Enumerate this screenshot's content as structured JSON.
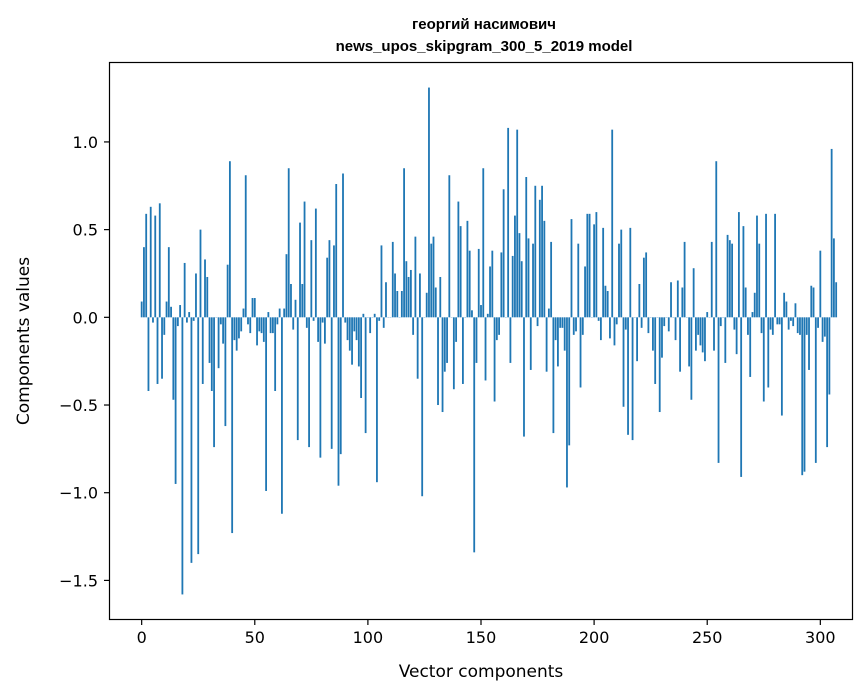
{
  "chart_data": {
    "type": "bar",
    "title_line1": "георгий насимович",
    "title_line2": "news_upos_skipgram_300_5_2019 model",
    "xlabel": "Vector components",
    "ylabel": "Components values",
    "xlim": [
      -14,
      314
    ],
    "ylim": [
      -1.72,
      1.45
    ],
    "xticks": [
      0,
      50,
      100,
      150,
      200,
      250,
      300
    ],
    "xtick_labels": [
      "0",
      "50",
      "100",
      "150",
      "200",
      "250",
      "300"
    ],
    "yticks": [
      -1.5,
      -1.0,
      -0.5,
      0.0,
      0.5,
      1.0
    ],
    "ytick_labels": [
      "−1.5",
      "−1.0",
      "−0.5",
      "0.0",
      "0.5",
      "1.0"
    ],
    "bar_color": "#1f77b4",
    "values": [
      0.09,
      0.4,
      0.59,
      -0.42,
      0.63,
      -0.03,
      0.58,
      -0.38,
      0.65,
      -0.35,
      -0.1,
      0.09,
      0.4,
      0.06,
      -0.47,
      -0.95,
      -0.05,
      0.07,
      -1.58,
      0.31,
      -0.03,
      0.03,
      -1.4,
      -0.02,
      0.25,
      -1.35,
      0.5,
      -0.38,
      0.33,
      0.23,
      -0.26,
      -0.42,
      -0.74,
      0.0,
      -0.29,
      -0.04,
      -0.15,
      -0.62,
      0.3,
      0.89,
      -1.23,
      -0.13,
      -0.19,
      -0.12,
      -0.08,
      0.05,
      0.81,
      -0.04,
      -0.09,
      0.11,
      0.11,
      -0.16,
      -0.08,
      -0.09,
      -0.14,
      -0.99,
      0.03,
      -0.09,
      -0.09,
      -0.42,
      -0.04,
      0.05,
      -1.12,
      0.05,
      0.36,
      0.85,
      0.19,
      -0.07,
      0.1,
      -0.7,
      0.54,
      0.19,
      0.66,
      -0.06,
      -0.74,
      0.44,
      -0.02,
      0.62,
      -0.14,
      -0.8,
      -0.03,
      -0.15,
      0.34,
      0.44,
      -0.75,
      0.41,
      0.76,
      -0.96,
      -0.78,
      0.82,
      -0.03,
      -0.13,
      -0.19,
      -0.27,
      -0.08,
      -0.13,
      -0.28,
      -0.46,
      0.02,
      -0.66,
      0.0,
      -0.09,
      0.0,
      0.02,
      -0.94,
      -0.02,
      0.41,
      -0.06,
      0.2,
      0.0,
      0.0,
      0.43,
      0.25,
      0.15,
      0.0,
      0.15,
      0.85,
      0.32,
      0.23,
      0.27,
      -0.1,
      0.46,
      -0.35,
      0.25,
      -1.02,
      0.0,
      0.14,
      1.31,
      0.42,
      0.46,
      0.17,
      -0.5,
      0.23,
      -0.54,
      -0.31,
      -0.26,
      0.81,
      0.0,
      -0.41,
      -0.14,
      0.66,
      0.52,
      -0.38,
      0.0,
      0.55,
      0.38,
      0.04,
      -1.34,
      -0.26,
      0.39,
      0.07,
      0.85,
      -0.36,
      0.02,
      0.29,
      0.38,
      -0.48,
      -0.13,
      -0.1,
      0.37,
      0.73,
      0.0,
      1.08,
      -0.26,
      0.35,
      0.58,
      1.07,
      0.48,
      0.32,
      -0.68,
      0.8,
      0.45,
      -0.3,
      0.42,
      0.75,
      -0.05,
      0.67,
      0.75,
      0.55,
      -0.31,
      0.05,
      0.43,
      -0.66,
      -0.13,
      -0.28,
      -0.06,
      -0.06,
      -0.19,
      -0.97,
      -0.73,
      0.56,
      -0.1,
      -0.08,
      0.42,
      -0.4,
      -0.1,
      0.29,
      0.59,
      0.59,
      0.0,
      0.53,
      0.6,
      -0.02,
      -0.13,
      0.51,
      0.18,
      0.15,
      -0.12,
      1.07,
      -0.16,
      -0.04,
      0.42,
      0.5,
      -0.51,
      -0.07,
      -0.67,
      0.51,
      -0.7,
      0.0,
      -0.25,
      0.19,
      -0.06,
      0.34,
      0.37,
      -0.09,
      0.0,
      -0.19,
      -0.38,
      0.0,
      -0.54,
      -0.23,
      -0.05,
      0.0,
      -0.08,
      0.2,
      0.0,
      -0.13,
      0.21,
      -0.31,
      0.17,
      0.43,
      0.0,
      -0.28,
      -0.47,
      0.28,
      -0.19,
      -0.1,
      -0.16,
      -0.2,
      -0.25,
      0.03,
      0.0,
      0.43,
      -0.19,
      0.89,
      -0.83,
      -0.05,
      0.0,
      -0.26,
      0.47,
      0.44,
      0.42,
      -0.07,
      -0.21,
      0.6,
      -0.91,
      0.52,
      0.17,
      -0.1,
      -0.34,
      0.03,
      0.14,
      0.58,
      0.42,
      -0.09,
      -0.48,
      0.59,
      -0.4,
      -0.07,
      -0.1,
      0.59,
      -0.04,
      -0.04,
      -0.56,
      0.14,
      0.09,
      -0.07,
      -0.02,
      -0.05,
      0.08,
      -0.09,
      -0.1,
      -0.9,
      -0.88,
      -0.1,
      -0.3,
      0.18,
      0.17,
      -0.83,
      -0.06,
      0.38,
      -0.14,
      -0.11,
      -0.74,
      -0.44,
      0.96,
      0.45,
      0.2
    ]
  }
}
